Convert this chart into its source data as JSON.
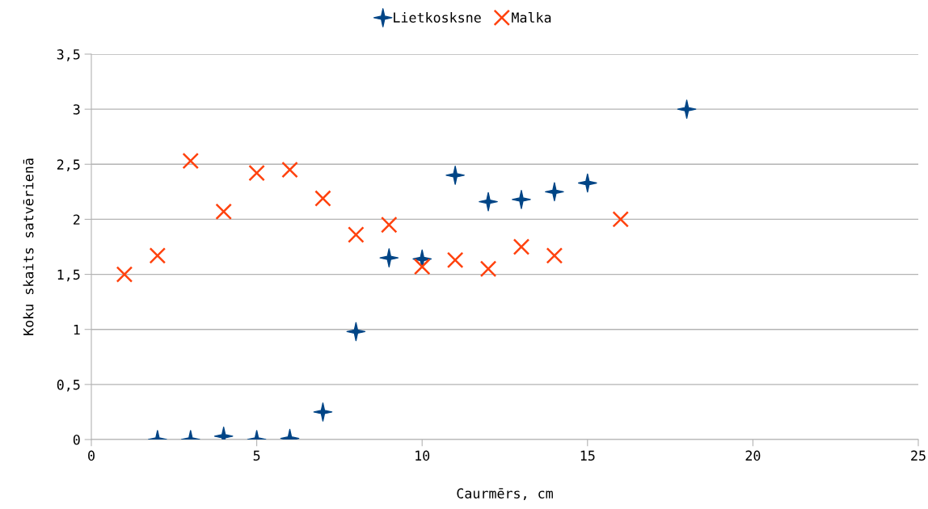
{
  "chart_data": {
    "type": "scatter",
    "xlabel": "Caurmērs, cm",
    "ylabel": "Koku skaits satvērienā",
    "xlim": [
      0,
      25
    ],
    "xticks": [
      0,
      5,
      10,
      15,
      20,
      25
    ],
    "ylim": [
      0,
      3.5
    ],
    "yticks": [
      0,
      {
        "value": 0.5,
        "label": "0,5"
      },
      1,
      {
        "value": 1.5,
        "label": "1,5"
      },
      2,
      {
        "value": 2.5,
        "label": "2,5"
      },
      3,
      {
        "value": 3.5,
        "label": "3,5"
      }
    ],
    "grid": "y",
    "legend": "top",
    "series": [
      {
        "name": "Lietkosksne",
        "color": "#004586",
        "marker": "star",
        "x": [
          2,
          3,
          4,
          5,
          6,
          7,
          8,
          9,
          10,
          11,
          12,
          13,
          14,
          15,
          18
        ],
        "values": [
          0,
          0,
          0.03,
          0,
          0.01,
          0.25,
          0.98,
          1.65,
          1.64,
          2.4,
          2.16,
          2.18,
          2.25,
          2.33,
          3.0
        ]
      },
      {
        "name": "Malka",
        "color": "#ff420e",
        "marker": "cross",
        "x": [
          1,
          2,
          3,
          4,
          5,
          6,
          7,
          8,
          9,
          10,
          11,
          12,
          13,
          14,
          16
        ],
        "values": [
          1.5,
          1.67,
          2.53,
          2.07,
          2.42,
          2.45,
          2.19,
          1.86,
          1.95,
          1.57,
          1.63,
          1.55,
          1.75,
          1.67,
          2.0
        ]
      }
    ]
  }
}
